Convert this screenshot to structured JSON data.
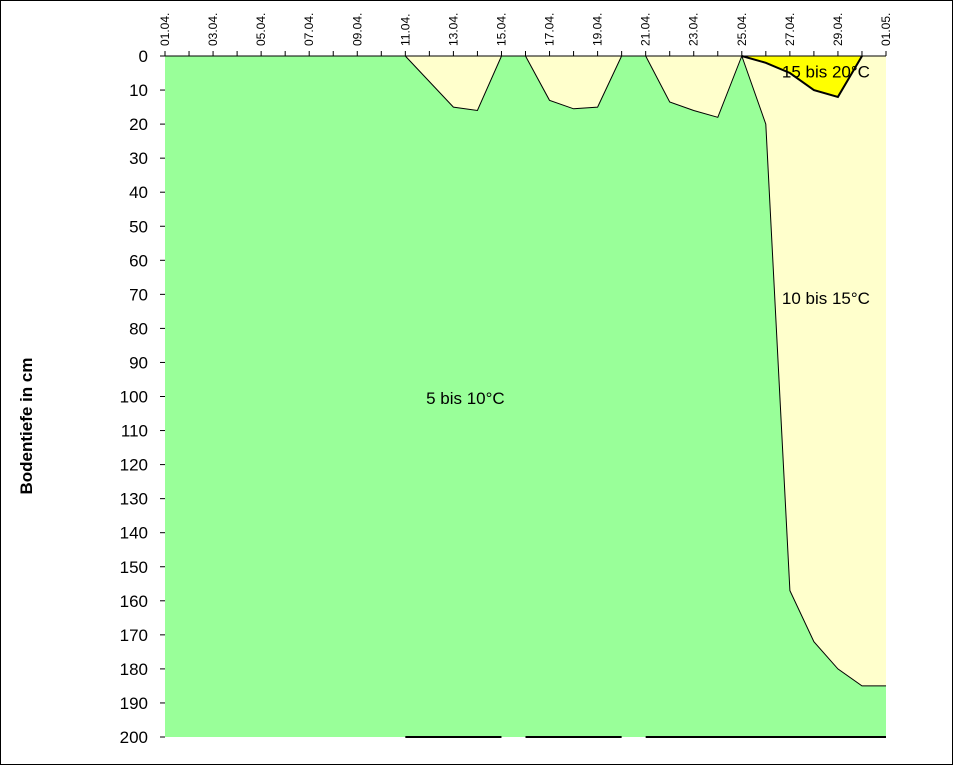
{
  "chart_data": {
    "type": "area",
    "title": "",
    "xlabel": "",
    "ylabel": "Bodentiefe in cm",
    "y_axis_reversed": true,
    "ylim": [
      0,
      200
    ],
    "yticks": [
      0,
      10,
      20,
      30,
      40,
      50,
      60,
      70,
      80,
      90,
      100,
      110,
      120,
      130,
      140,
      150,
      160,
      170,
      180,
      190,
      200
    ],
    "x_tick_labels": [
      "01.04.",
      "03.04.",
      "05.04.",
      "07.04.",
      "09.04.",
      "11.04.",
      "13.04.",
      "15.04.",
      "17.04.",
      "19.04.",
      "21.04.",
      "23.04.",
      "25.04.",
      "27.04.",
      "29.04.",
      "01.05."
    ],
    "zones": [
      {
        "name": "5 bis 10°C",
        "color": "#99ff99",
        "fills_to_bottom": true
      },
      {
        "name": "10 bis 15°C",
        "color": "#ffffcc",
        "boundary": [
          {
            "day": 11,
            "depth": 0
          },
          {
            "day": 13,
            "depth": 15
          },
          {
            "day": 14,
            "depth": 16
          },
          {
            "day": 15,
            "depth": 0
          },
          {
            "day": 16,
            "depth": 0
          },
          {
            "day": 17,
            "depth": 13
          },
          {
            "day": 18,
            "depth": 15.5
          },
          {
            "day": 19,
            "depth": 15
          },
          {
            "day": 20,
            "depth": 0
          },
          {
            "day": 21,
            "depth": 0
          },
          {
            "day": 22,
            "depth": 13.5
          },
          {
            "day": 23,
            "depth": 16
          },
          {
            "day": 24,
            "depth": 18
          },
          {
            "day": 25,
            "depth": 0
          },
          {
            "day": 26,
            "depth": 20
          },
          {
            "day": 27,
            "depth": 157
          },
          {
            "day": 28,
            "depth": 172
          },
          {
            "day": 29,
            "depth": 180
          },
          {
            "day": 30,
            "depth": 185
          },
          {
            "day": 31,
            "depth": 185
          }
        ]
      },
      {
        "name": "15 bis 20°C",
        "color": "#ffff00",
        "boundary": [
          {
            "day": 25,
            "depth": 0
          },
          {
            "day": 26,
            "depth": 2
          },
          {
            "day": 27,
            "depth": 5
          },
          {
            "day": 28,
            "depth": 10
          },
          {
            "day": 29,
            "depth": 12
          },
          {
            "day": 30,
            "depth": 0
          }
        ]
      }
    ]
  }
}
